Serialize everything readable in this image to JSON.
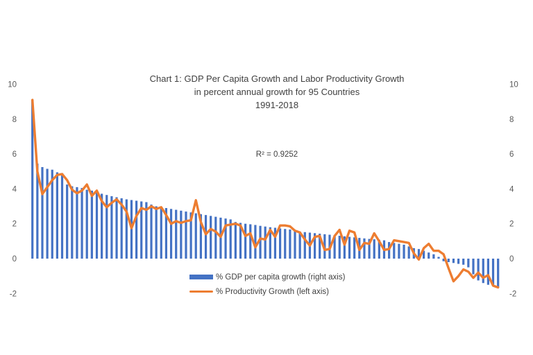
{
  "title": {
    "line1": "Chart 1: GDP Per Capita Growth and Labor Productivity Growth",
    "line2": "in percent annual growth for 95 Countries",
    "line3": "1991-2018"
  },
  "annotation": {
    "r_squared": "R² = 0.9252"
  },
  "legend": [
    {
      "label": "% GDP per capita growth (right axis)",
      "type": "bar",
      "color": "#4472C4"
    },
    {
      "label": "% Productivity Growth (left axis)",
      "type": "line",
      "color": "#ED7D31"
    }
  ],
  "colors": {
    "bar": "#4472C4",
    "line": "#ED7D31",
    "text": "#404040",
    "axis_text": "#595959",
    "background": "#ffffff"
  },
  "chart_data": {
    "type": "bar+line combo",
    "title": "Chart 1: GDP Per Capita Growth and Labor Productivity Growth",
    "subtitle": "in percent annual growth for 95 Countries",
    "period": "1991-2018",
    "r_squared": 0.9252,
    "n_points": 95,
    "x_unit": "95 countries, unlabeled, sorted descending by GDP per capita growth",
    "ylim": [
      -2,
      10
    ],
    "yticks": [
      10,
      8,
      6,
      4,
      2,
      0,
      -2
    ],
    "grid": false,
    "axis_lines": false,
    "legend_position": "bottom-center",
    "series": [
      {
        "name": "% GDP per capita growth (right axis)",
        "type": "bar",
        "axis": "right",
        "color": "#4472C4",
        "values": [
          9.1,
          5.45,
          5.25,
          5.15,
          5.1,
          4.95,
          4.9,
          4.25,
          4.15,
          4.1,
          4.05,
          3.95,
          3.9,
          3.8,
          3.72,
          3.65,
          3.58,
          3.52,
          3.46,
          3.4,
          3.36,
          3.32,
          3.28,
          3.24,
          3.1,
          3.0,
          2.95,
          2.9,
          2.85,
          2.8,
          2.75,
          2.7,
          2.65,
          2.6,
          2.55,
          2.5,
          2.45,
          2.4,
          2.35,
          2.3,
          2.25,
          2.1,
          2.05,
          2.0,
          1.97,
          1.93,
          1.88,
          1.84,
          1.8,
          1.77,
          1.73,
          1.7,
          1.67,
          1.64,
          1.55,
          1.52,
          1.49,
          1.46,
          1.43,
          1.4,
          1.37,
          1.34,
          1.31,
          1.28,
          1.25,
          1.22,
          1.19,
          1.16,
          1.13,
          1.11,
          1.08,
          1.05,
          0.95,
          0.9,
          0.85,
          0.8,
          0.7,
          0.6,
          0.55,
          0.45,
          0.35,
          0.25,
          0.1,
          -0.15,
          -0.2,
          -0.25,
          -0.3,
          -0.35,
          -0.5,
          -0.9,
          -1.25,
          -1.4,
          -1.5,
          -1.55,
          -1.65
        ]
      },
      {
        "name": "% Productivity Growth (left axis)",
        "type": "line",
        "axis": "left",
        "color": "#ED7D31",
        "values": [
          9.1,
          5.0,
          3.7,
          4.1,
          4.5,
          4.8,
          4.85,
          4.5,
          3.95,
          3.75,
          3.9,
          4.25,
          3.6,
          3.9,
          3.3,
          2.95,
          3.2,
          3.4,
          3.1,
          2.7,
          1.75,
          2.45,
          2.9,
          2.8,
          3.0,
          2.85,
          2.95,
          2.5,
          2.0,
          2.15,
          2.05,
          2.15,
          2.2,
          3.35,
          2.1,
          1.4,
          1.7,
          1.55,
          1.25,
          1.9,
          1.95,
          2.0,
          1.9,
          1.3,
          1.45,
          0.65,
          1.15,
          1.1,
          1.65,
          1.25,
          1.9,
          1.9,
          1.85,
          1.6,
          1.5,
          1.1,
          0.75,
          1.25,
          1.3,
          0.5,
          0.55,
          1.3,
          1.65,
          0.8,
          1.6,
          1.5,
          0.5,
          0.9,
          0.85,
          1.45,
          1.0,
          0.5,
          0.55,
          1.05,
          1.0,
          0.95,
          0.9,
          0.3,
          -0.05,
          0.6,
          0.85,
          0.45,
          0.45,
          0.25,
          -0.55,
          -1.3,
          -1.0,
          -0.62,
          -0.75,
          -1.1,
          -0.8,
          -1.1,
          -0.95,
          -1.55,
          -1.65
        ]
      }
    ]
  }
}
